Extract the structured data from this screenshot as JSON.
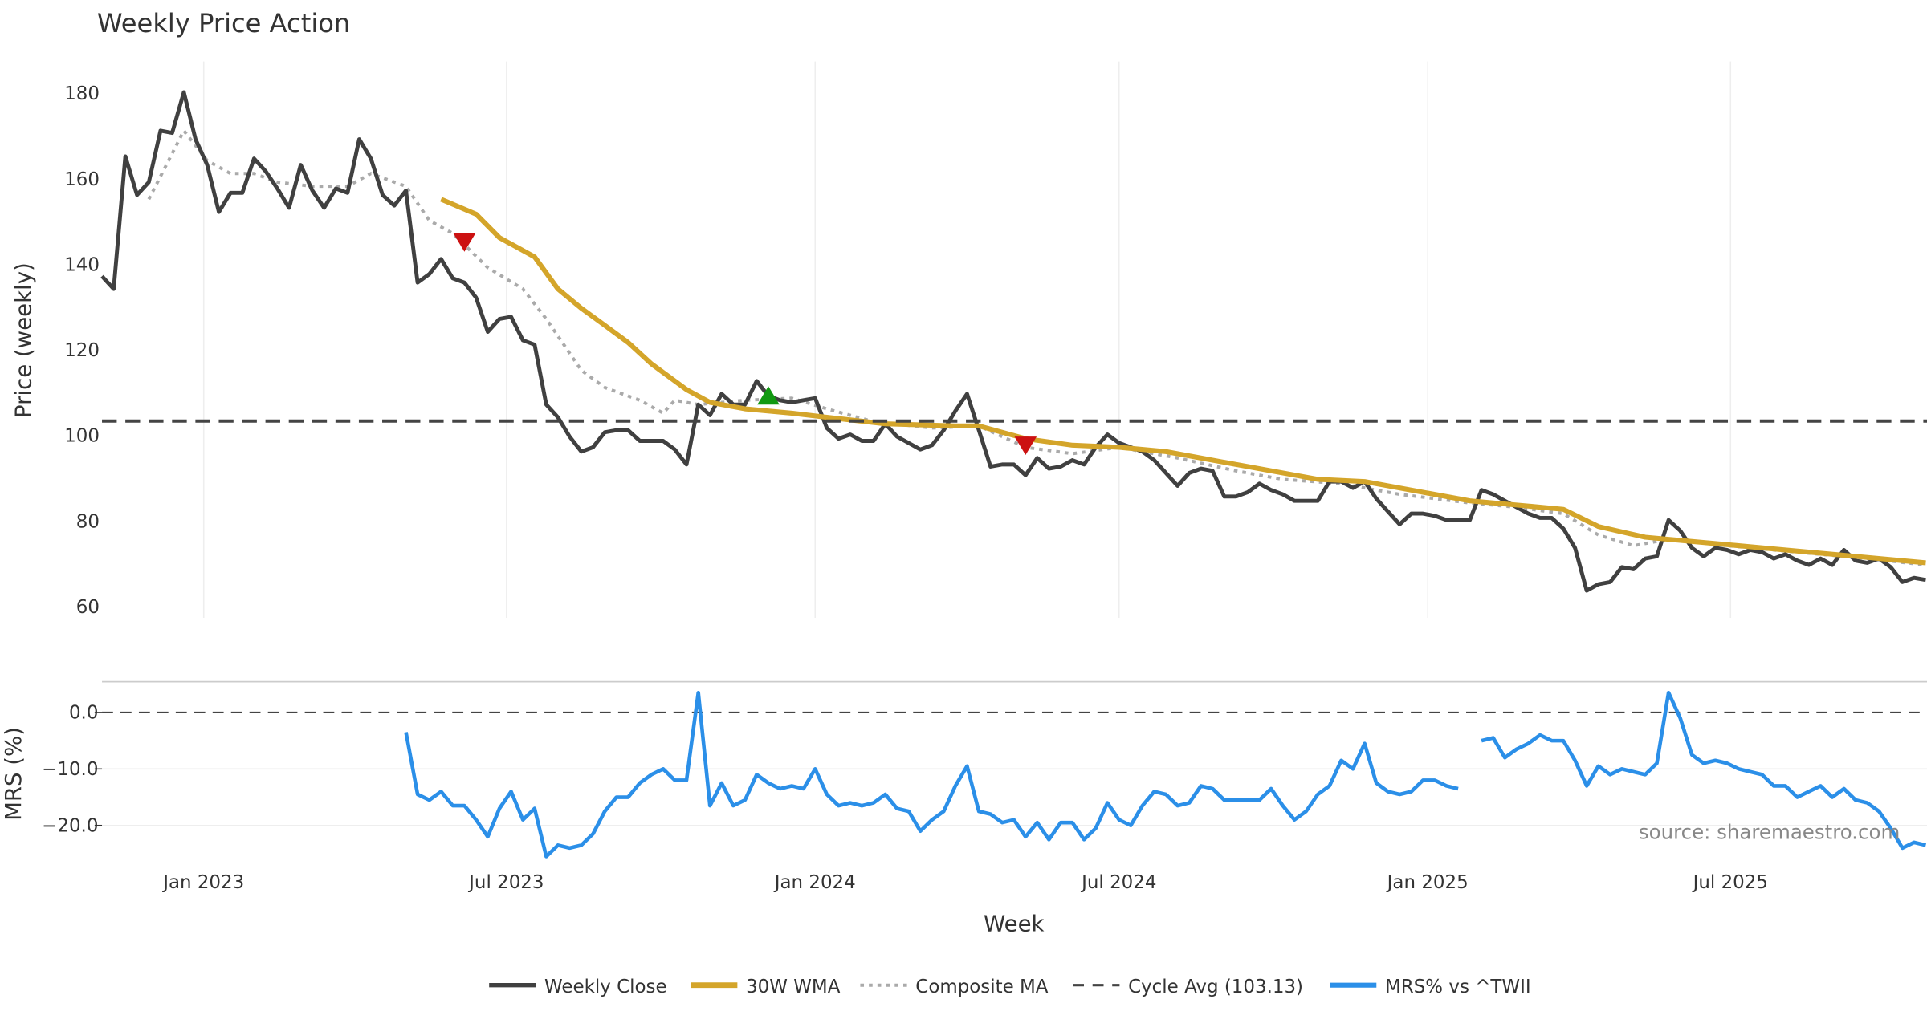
{
  "chart_data": [
    {
      "type": "line",
      "title": "Weekly Price Action",
      "xlabel": "Week",
      "ylabel": "Price (weekly)",
      "ylim": [
        57,
        186
      ],
      "xlim_week_index": [
        0,
        156
      ],
      "yticks": [
        "60",
        "80",
        "100",
        "120",
        "140",
        "160",
        "180"
      ],
      "ytick_values": [
        60,
        80,
        100,
        120,
        140,
        160,
        180
      ],
      "xticks": [
        {
          "label": "Jan 2023",
          "week_index": 8.7
        },
        {
          "label": "Jul 2023",
          "week_index": 34.6
        },
        {
          "label": "Jan 2024",
          "week_index": 61
        },
        {
          "label": "Jul 2024",
          "week_index": 87
        },
        {
          "label": "Jan 2025",
          "week_index": 113.4
        },
        {
          "label": "Jul 2025",
          "week_index": 139.3
        }
      ],
      "grid": "vertical",
      "series": [
        {
          "name": "Weekly Close",
          "color": "#404040",
          "values": [
            137,
            134,
            165,
            156,
            159,
            171,
            170.5,
            180,
            169,
            163,
            152,
            156.5,
            156.5,
            164.5,
            161.5,
            157.5,
            153,
            163,
            157,
            153,
            157.5,
            156.5,
            169,
            164.5,
            156,
            153.5,
            157,
            135.5,
            137.5,
            141,
            136.5,
            135.5,
            132,
            124,
            127,
            127.5,
            122,
            121,
            107,
            104,
            99.5,
            96,
            97,
            100.5,
            101,
            101,
            98.5,
            98.5,
            98.5,
            96.5,
            93,
            107,
            104.5,
            109.5,
            107,
            107,
            112.5,
            109,
            108,
            107.5,
            108,
            108.5,
            101.5,
            99,
            100,
            98.5,
            98.5,
            102.5,
            99.5,
            98,
            96.5,
            97.5,
            101,
            105.5,
            109.5,
            101,
            92.5,
            93,
            93,
            90.5,
            94.5,
            92,
            92.5,
            94,
            93,
            97,
            100,
            98,
            97,
            96,
            94,
            91,
            88,
            91,
            92,
            91.5,
            85.5,
            85.5,
            86.5,
            88.5,
            87,
            86,
            84.5,
            84.5,
            84.5,
            89,
            89,
            87.5,
            89,
            85,
            82,
            79,
            81.5,
            81.5,
            81,
            80,
            80,
            80,
            87,
            86,
            84.5,
            83,
            81.5,
            80.5,
            80.5,
            78,
            73.5,
            63.5,
            65,
            65.5,
            69,
            68.5,
            71,
            71.5,
            80,
            77.5,
            73.5,
            71.5,
            73.5,
            73,
            72,
            73,
            72.5,
            71,
            72,
            70.5,
            69.5,
            71,
            69.5,
            73,
            70.5,
            70,
            71,
            69,
            65.5,
            66.5,
            66
          ]
        },
        {
          "name": "30W WMA",
          "color": "#D4A52A",
          "points": [
            [
              29,
              155
            ],
            [
              32,
              151.5
            ],
            [
              34,
              146
            ],
            [
              37,
              141.5
            ],
            [
              39,
              134
            ],
            [
              41,
              129.5
            ],
            [
              43,
              125.5
            ],
            [
              45,
              121.5
            ],
            [
              47,
              116.5
            ],
            [
              50,
              110.5
            ],
            [
              52,
              107.5
            ],
            [
              55,
              106
            ],
            [
              59,
              105
            ],
            [
              62,
              104
            ],
            [
              67,
              102.5
            ],
            [
              73,
              102
            ],
            [
              75,
              102
            ],
            [
              79,
              99
            ],
            [
              83,
              97.5
            ],
            [
              87,
              97
            ],
            [
              91,
              96
            ],
            [
              95,
              94
            ],
            [
              99,
              92
            ],
            [
              104,
              89.5
            ],
            [
              108,
              89
            ],
            [
              113,
              86.5
            ],
            [
              117,
              84.5
            ],
            [
              121,
              83.5
            ],
            [
              125,
              82.5
            ],
            [
              128,
              78.5
            ],
            [
              132,
              76
            ],
            [
              138,
              74.5
            ],
            [
              144,
              73
            ],
            [
              150,
              71.5
            ],
            [
              156,
              70
            ]
          ]
        },
        {
          "name": "Composite MA",
          "color": "#AAAAAA",
          "points": [
            [
              4,
              155
            ],
            [
              7,
              171
            ],
            [
              9,
              164
            ],
            [
              11,
              161
            ],
            [
              13,
              161
            ],
            [
              15,
              159
            ],
            [
              18,
              158
            ],
            [
              21,
              158
            ],
            [
              23,
              161
            ],
            [
              26,
              158
            ],
            [
              28,
              150
            ],
            [
              30,
              147
            ],
            [
              33,
              139
            ],
            [
              36,
              134
            ],
            [
              38,
              127
            ],
            [
              41,
              115
            ],
            [
              43,
              111
            ],
            [
              46,
              108
            ],
            [
              48,
              105
            ],
            [
              49,
              108
            ],
            [
              51,
              107
            ],
            [
              55,
              108
            ],
            [
              59,
              108.5
            ],
            [
              62,
              106
            ],
            [
              66,
              103
            ],
            [
              71,
              101.5
            ],
            [
              75,
              102
            ],
            [
              79,
              97
            ],
            [
              83,
              95.5
            ],
            [
              87,
              97
            ],
            [
              92,
              94.5
            ],
            [
              97,
              91.5
            ],
            [
              101,
              89.5
            ],
            [
              106,
              88.5
            ],
            [
              111,
              86
            ],
            [
              117,
              84
            ],
            [
              121,
              83
            ],
            [
              125,
              81.5
            ],
            [
              128,
              76.5
            ],
            [
              131,
              74
            ],
            [
              134,
              75.5
            ],
            [
              139,
              74
            ],
            [
              145,
              72.5
            ],
            [
              151,
              71
            ],
            [
              156,
              69.5
            ]
          ]
        },
        {
          "name": "Cycle Avg (103.13)",
          "color": "#444444",
          "constant": 103.13
        }
      ],
      "markers": [
        {
          "type": "sell",
          "shape": "triangle-down",
          "color": "#CC1111",
          "week_index": 31,
          "value": 145
        },
        {
          "type": "buy",
          "shape": "triangle-up",
          "color": "#119911",
          "week_index": 57,
          "value": 109
        },
        {
          "type": "sell",
          "shape": "triangle-down",
          "color": "#CC1111",
          "week_index": 79,
          "value": 97.5
        }
      ]
    },
    {
      "type": "line",
      "ylabel": "MRS (%)",
      "ylim": [
        -27,
        5.5
      ],
      "yticks": [
        "0.0",
        "−10.0",
        "−20.0"
      ],
      "ytick_values": [
        0,
        -10,
        -20
      ],
      "zero_line": 0,
      "series": [
        {
          "name": "MRS% vs ^TWII",
          "color": "#2B8FE8",
          "start_index": 26,
          "values": [
            -3.5,
            -14.5,
            -15.5,
            -14,
            -16.5,
            -16.5,
            -19,
            -22,
            -17,
            -14,
            -19,
            -17,
            -25.5,
            -23.5,
            -24,
            -23.5,
            -21.5,
            -17.5,
            -15,
            -15,
            -12.5,
            -11,
            -10,
            -12,
            -12,
            3.5,
            -16.5,
            -12.5,
            -16.5,
            -15.5,
            -11,
            -12.5,
            -13.5,
            -13,
            -13.5,
            -10,
            -14.5,
            -16.5,
            -16,
            -16.5,
            -16,
            -14.5,
            -17,
            -17.5,
            -21,
            -19,
            -17.5,
            -13,
            -9.5,
            -17.5,
            -18,
            -19.5,
            -19,
            -22,
            -19.5,
            -22.5,
            -19.5,
            -19.5,
            -22.5,
            -20.5,
            -16,
            -19,
            -20,
            -16.5,
            -14,
            -14.5,
            -16.5,
            -16,
            -13,
            -13.5,
            -15.5,
            -15.5,
            -15.5,
            -15.5,
            -13.5,
            -16.5,
            -19,
            -17.5,
            -14.5,
            -13,
            -8.5,
            -10,
            -5.5,
            -12.5,
            -14,
            -14.5,
            -14,
            -12,
            -12,
            -13,
            -13.5,
            null,
            -5,
            -4.5,
            -8,
            -6.5,
            -5.5,
            -4,
            -5,
            -5,
            -8.5,
            -13,
            -9.5,
            -11,
            -10,
            -10.5,
            -11,
            -9,
            3.5,
            -1,
            -7.5,
            -9,
            -8.5,
            -9,
            -10,
            -10.5,
            -11,
            -13,
            -13,
            -15,
            -14,
            -13,
            -15,
            -13.5,
            -15.5,
            -16,
            -17.5,
            -20.5,
            -24,
            -23,
            -23.5
          ]
        }
      ]
    }
  ],
  "legend": {
    "placement": "bottom-center",
    "items": [
      "Weekly Close",
      "30W WMA",
      "Composite MA",
      "Cycle Avg (103.13)",
      "MRS% vs ^TWII"
    ]
  },
  "source": "source: sharemaestro.com"
}
